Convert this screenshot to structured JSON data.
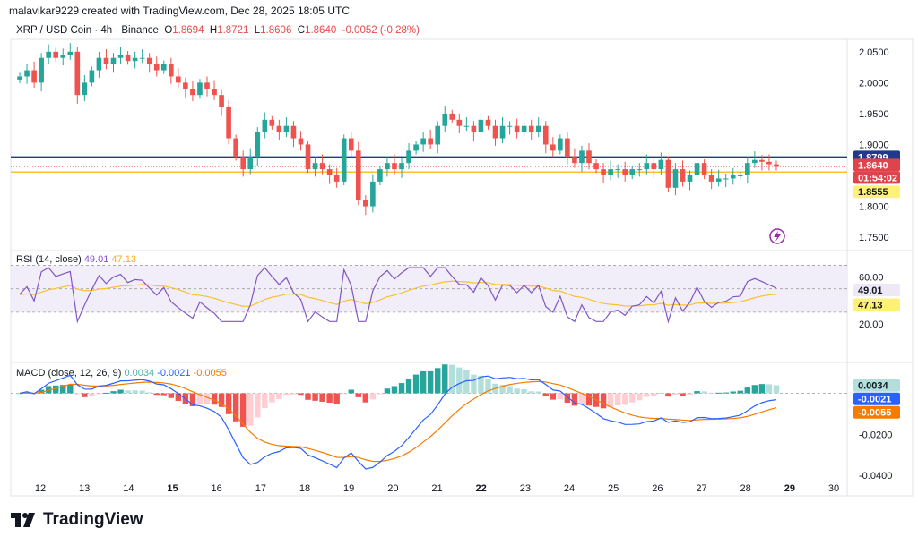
{
  "header": {
    "author_line": "malavikar9229 created with TradingView.com, Dec 28, 2025 18:05 UTC"
  },
  "symbol": {
    "name": "XRP / USD Coin · 4h · Binance",
    "open_label": "O",
    "open": "1.8694",
    "high_label": "H",
    "high": "1.8721",
    "low_label": "L",
    "low": "1.8606",
    "close_label": "C",
    "close": "1.8640",
    "change": "-0.0052 (-0.28%)"
  },
  "price_axis": {
    "ticks": [
      "2.0500",
      "2.0000",
      "1.9500",
      "1.9000",
      "1.8000",
      "1.7500"
    ],
    "labels": [
      {
        "text": "1.8799",
        "bg": "#1e3a8a",
        "fg": "#ffffff"
      },
      {
        "text": "1.8640",
        "bg": "#e0434b",
        "fg": "#ffffff"
      },
      {
        "text": "01:54:02",
        "bg": "#e0434b",
        "fg": "#ffffff"
      },
      {
        "text": "1.8555",
        "bg": "#fff176",
        "fg": "#131722"
      }
    ]
  },
  "rsi": {
    "title": "RSI (14, close)",
    "value": "49.01",
    "ma_value": "47.13",
    "ticks": [
      "60.00",
      "20.00"
    ],
    "labels": [
      {
        "text": "49.01",
        "bg": "#ede7f6",
        "fg": "#131722"
      },
      {
        "text": "47.13",
        "bg": "#fff176",
        "fg": "#131722"
      }
    ]
  },
  "macd": {
    "title": "MACD (close, 12, 26, 9)",
    "hist": "0.0034",
    "macd": "-0.0021",
    "signal": "-0.0055",
    "ticks": [
      "-0.0200",
      "-0.0400"
    ],
    "labels": [
      {
        "text": "0.0034",
        "bg": "#b2dfdb",
        "fg": "#131722"
      },
      {
        "text": "-0.0021",
        "bg": "#2962ff",
        "fg": "#ffffff"
      },
      {
        "text": "-0.0055",
        "bg": "#f57c00",
        "fg": "#ffffff"
      }
    ]
  },
  "time_axis": [
    "12",
    "13",
    "14",
    "15",
    "16",
    "17",
    "18",
    "19",
    "20",
    "21",
    "22",
    "23",
    "24",
    "25",
    "26",
    "27",
    "28",
    "29",
    "30"
  ],
  "brand": {
    "logo_text": "TradingView"
  },
  "colors": {
    "up": "#26a69a",
    "down": "#ef5350",
    "macd": "#2962ff",
    "signal": "#f57c00",
    "rsi": "#7e57c2",
    "rsi_ma": "#fbc02d"
  },
  "chart_data": {
    "type": "candlestick",
    "timeframe": "4h",
    "ylim": [
      1.74,
      2.07
    ],
    "hlines": [
      1.8799,
      1.8555
    ],
    "candles_close": [
      2.01,
      2.02,
      2.0,
      2.04,
      2.05,
      2.04,
      2.045,
      2.05,
      1.98,
      2.0,
      2.02,
      2.04,
      2.03,
      2.04,
      2.045,
      2.035,
      2.04,
      2.04,
      2.03,
      2.02,
      2.03,
      2.01,
      2.0,
      1.99,
      1.98,
      2.0,
      1.99,
      1.98,
      1.96,
      1.91,
      1.88,
      1.86,
      1.88,
      1.92,
      1.94,
      1.93,
      1.92,
      1.93,
      1.91,
      1.9,
      1.86,
      1.87,
      1.86,
      1.85,
      1.84,
      1.91,
      1.89,
      1.81,
      1.8,
      1.84,
      1.86,
      1.87,
      1.86,
      1.87,
      1.89,
      1.9,
      1.91,
      1.9,
      1.93,
      1.95,
      1.94,
      1.93,
      1.93,
      1.92,
      1.94,
      1.93,
      1.91,
      1.93,
      1.93,
      1.92,
      1.93,
      1.92,
      1.93,
      1.9,
      1.89,
      1.91,
      1.88,
      1.87,
      1.89,
      1.87,
      1.86,
      1.85,
      1.86,
      1.86,
      1.85,
      1.86,
      1.86,
      1.87,
      1.86,
      1.875,
      1.83,
      1.86,
      1.84,
      1.85,
      1.87,
      1.85,
      1.84,
      1.845,
      1.845,
      1.85,
      1.85,
      1.87,
      1.875,
      1.872,
      1.868,
      1.864
    ]
  }
}
